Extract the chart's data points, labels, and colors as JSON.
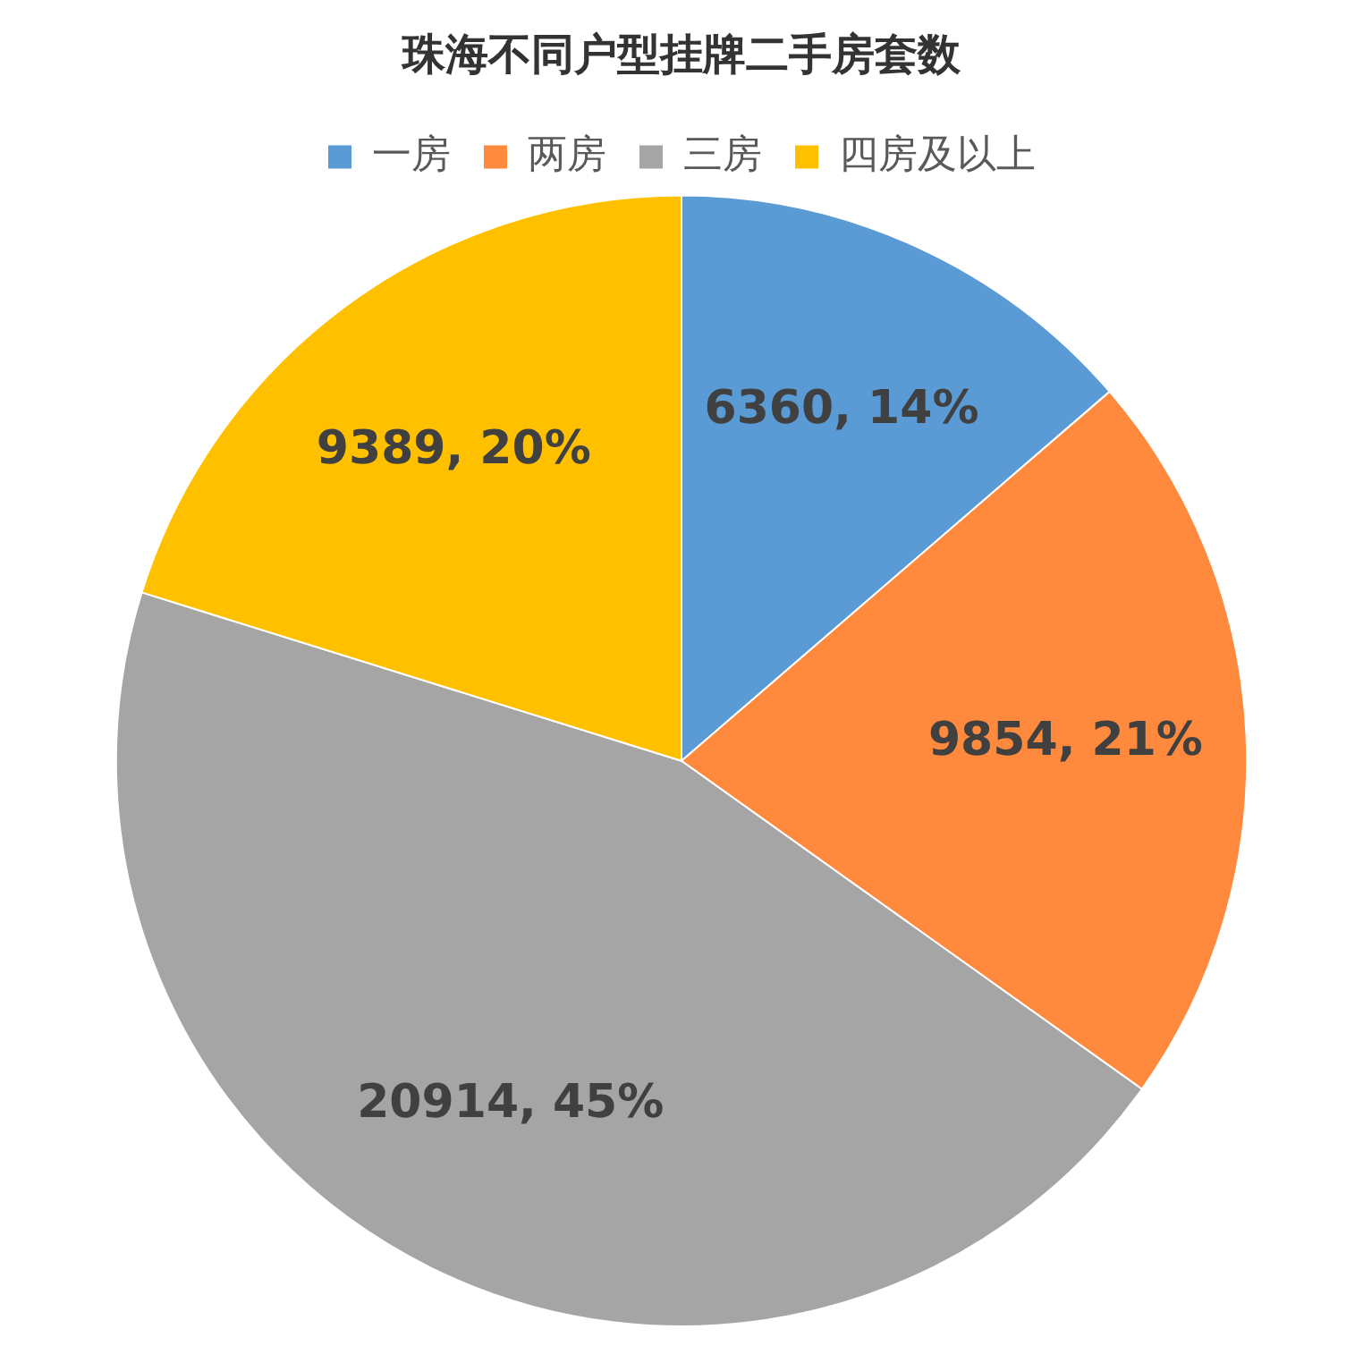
{
  "chart_data": {
    "type": "pie",
    "title": "珠海不同户型挂牌二手房套数",
    "categories": [
      "一房",
      "两房",
      "三房",
      "四房及以上"
    ],
    "values": [
      6360,
      9854,
      20914,
      9389
    ],
    "colors": [
      "#5b9bd5",
      "#ff8a3d",
      "#a5a5a5",
      "#ffc000"
    ],
    "value_labels": [
      "6360, 14%",
      "9854, 21%",
      "20914, 45%",
      "9389, 20%"
    ],
    "legend": "top"
  }
}
